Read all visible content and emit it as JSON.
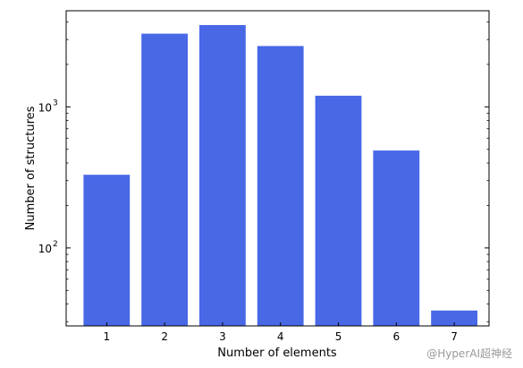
{
  "chart_data": {
    "type": "bar",
    "xlabel": "Number of elements",
    "ylabel": "Number of structures",
    "yscale": "log",
    "ylim": [
      28,
      4800
    ],
    "categories": [
      "1",
      "2",
      "3",
      "4",
      "5",
      "6",
      "7"
    ],
    "values": [
      330,
      3300,
      3800,
      2700,
      1200,
      490,
      36
    ],
    "y_ticks": [
      {
        "value": 100,
        "base": "10",
        "exp": "2"
      },
      {
        "value": 1000,
        "base": "10",
        "exp": "3"
      }
    ],
    "bar_color": "#4868e6"
  },
  "watermark": "@HyperAI超神经"
}
